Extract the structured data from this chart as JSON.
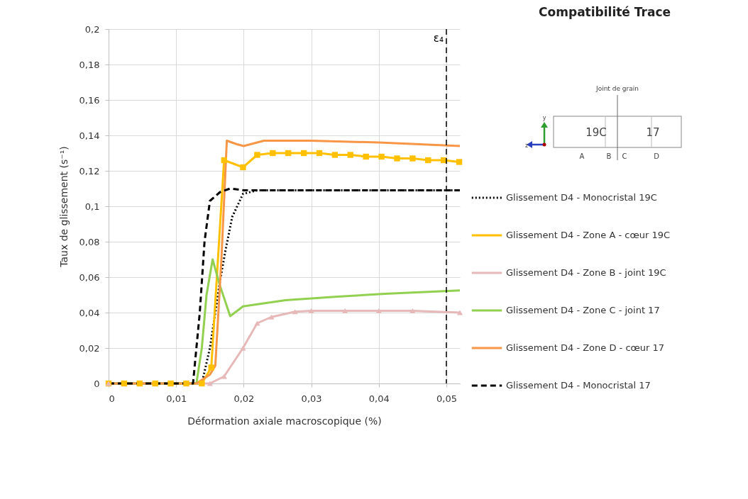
{
  "chart_data": {
    "type": "line",
    "title": "Compatibilité Trace",
    "xlabel": "Déformation axiale macroscopique (%)",
    "ylabel": "Taux de glissement (s⁻¹)",
    "xlim": [
      0,
      0.052
    ],
    "xticks": [
      0,
      {
        "value": 0.01,
        "label": "0,01"
      },
      {
        "value": 0.02,
        "label": "0,02"
      },
      {
        "value": 0.03,
        "label": "0,03"
      },
      {
        "value": 0.04,
        "label": "0,04"
      },
      {
        "value": 0.05,
        "label": "0,05"
      }
    ],
    "ylim": [
      0,
      0.2
    ],
    "yticks": [
      0,
      {
        "value": 0.02,
        "label": "0,02"
      },
      {
        "value": 0.04,
        "label": "0,04"
      },
      {
        "value": 0.06,
        "label": "0,06"
      },
      {
        "value": 0.08,
        "label": "0,08"
      },
      {
        "value": 0.1,
        "label": "0,1"
      },
      {
        "value": 0.12,
        "label": "0,12"
      },
      {
        "value": 0.14,
        "label": "0,14"
      },
      {
        "value": 0.16,
        "label": "0,16"
      },
      {
        "value": 0.18,
        "label": "0,18"
      },
      {
        "value": 0.2,
        "label": "0,2"
      }
    ],
    "grid": true,
    "legend": "right",
    "series": [
      {
        "name": "Glissement D4 - Monocristal 19C",
        "color": "#000000",
        "line_style": "dotted",
        "x": [
          0,
          0.0138,
          0.015,
          0.0158,
          0.0165,
          0.0173,
          0.0183,
          0.0199,
          0.022,
          0.052
        ],
        "values": [
          0,
          0,
          0.02,
          0.04,
          0.058,
          0.075,
          0.094,
          0.107,
          0.109,
          0.109
        ]
      },
      {
        "name": "Glissement D4 - Zone A - cœur 19C",
        "color": "#ffc000",
        "marker": "square",
        "x": [
          0,
          0.0023,
          0.0046,
          0.0069,
          0.0092,
          0.0115,
          0.0138,
          0.0152,
          0.0171,
          0.0199,
          0.022,
          0.0243,
          0.0266,
          0.0289,
          0.0312,
          0.0335,
          0.0358,
          0.0381,
          0.0404,
          0.0427,
          0.045,
          0.0473,
          0.0496,
          0.0519
        ],
        "values": [
          0,
          0,
          0,
          0,
          0,
          0,
          0,
          0.009,
          0.126,
          0.122,
          0.129,
          0.13,
          0.13,
          0.13,
          0.13,
          0.129,
          0.129,
          0.128,
          0.128,
          0.127,
          0.127,
          0.126,
          0.126,
          0.125
        ]
      },
      {
        "name": "Glissement D4 - Zone B - joint 19C",
        "color": "#e6b9b8",
        "marker": "triangle",
        "x": [
          0,
          0.015,
          0.0171,
          0.0199,
          0.022,
          0.0241,
          0.0276,
          0.03,
          0.035,
          0.04,
          0.045,
          0.052
        ],
        "values": [
          0,
          0,
          0.004,
          0.02,
          0.034,
          0.0375,
          0.0405,
          0.041,
          0.041,
          0.041,
          0.041,
          0.04
        ]
      },
      {
        "name": "Glissement D4 - Zone C - joint 17",
        "color": "#92d050",
        "x": [
          0,
          0.013,
          0.0138,
          0.0145,
          0.0154,
          0.0165,
          0.018,
          0.0199,
          0.0262,
          0.0339,
          0.0409,
          0.052
        ],
        "values": [
          0,
          0,
          0.02,
          0.05,
          0.07,
          0.055,
          0.038,
          0.0435,
          0.047,
          0.049,
          0.0506,
          0.0525
        ]
      },
      {
        "name": "Glissement D4 - Zone D - cœur 17",
        "color": "#f79646",
        "x": [
          0,
          0.013,
          0.015,
          0.0158,
          0.0167,
          0.0175,
          0.019,
          0.02,
          0.023,
          0.03,
          0.04,
          0.052
        ],
        "values": [
          0,
          0,
          0.005,
          0.01,
          0.07,
          0.137,
          0.135,
          0.134,
          0.137,
          0.137,
          0.136,
          0.134
        ]
      },
      {
        "name": "Glissement D4 - Monocristal 17",
        "color": "#000000",
        "line_style": "dashed",
        "x": [
          0,
          0.0125,
          0.0135,
          0.0142,
          0.015,
          0.0165,
          0.018,
          0.02,
          0.052
        ],
        "values": [
          0,
          0,
          0.04,
          0.08,
          0.103,
          0.108,
          0.11,
          0.109,
          0.109
        ]
      }
    ],
    "ref_lines": [
      {
        "axis": "x",
        "value": 0.05,
        "label": "ε₄",
        "line_style": "dashed",
        "color": "#000000"
      }
    ],
    "annotations": [
      "Joint de grain",
      "19C",
      "17",
      "A",
      "B",
      "C",
      "D",
      "y",
      "z"
    ]
  }
}
